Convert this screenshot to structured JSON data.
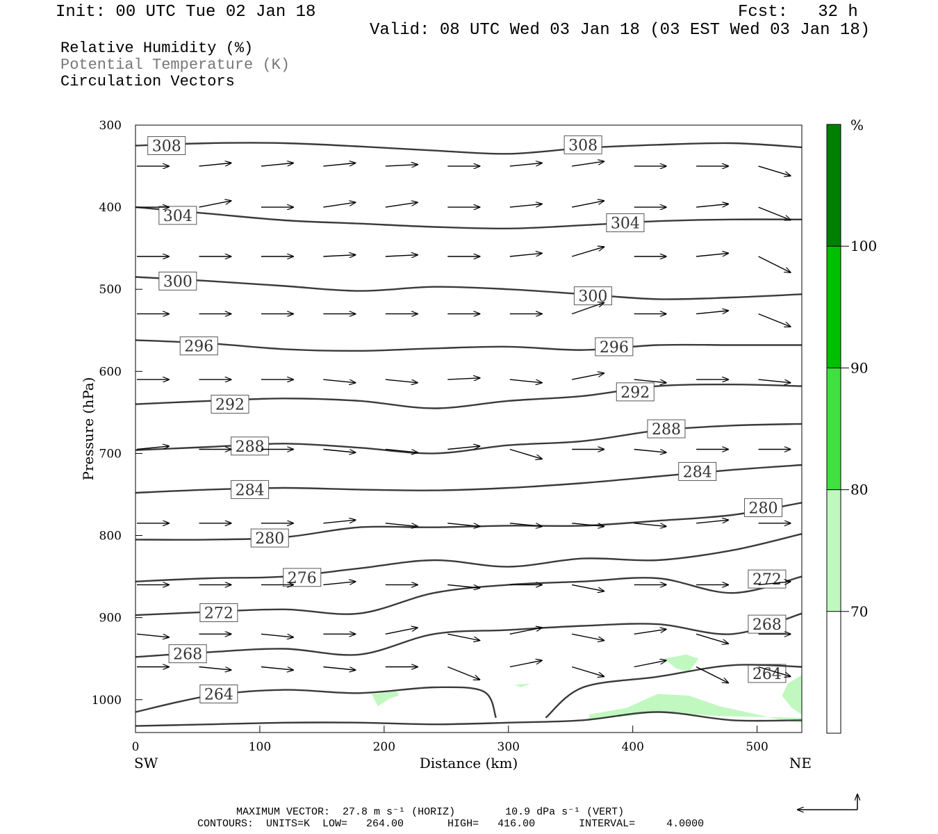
{
  "header": {
    "init": "Init: 00 UTC Tue 02 Jan 18",
    "fcst": "Fcst:   32 h",
    "valid": "Valid: 08 UTC Wed 03 Jan 18 (03 EST Wed 03 Jan 18)"
  },
  "fields": {
    "rh": "Relative Humidity (%)",
    "theta": "Potential Temperature (K)",
    "vectors": "Circulation Vectors"
  },
  "footer": {
    "max_vector": "MAXIMUM VECTOR:  27.8 m s⁻¹ (HORIZ)        10.9 dPa s⁻¹ (VERT)",
    "contours": "CONTOURS:  UNITS=K  LOW=   264.00       HIGH=   416.00       INTERVAL=     4.0000"
  },
  "colors": {
    "rh_70_80": "#c0f8c0",
    "rh_80_90": "#40e040",
    "rh_90_100": "#00c000",
    "rh_100plus": "#008000",
    "contour": "#3a3a3a",
    "arrow": "#000000"
  },
  "chart_data": {
    "type": "cross-section",
    "xlabel": "Distance (km)",
    "ylabel": "Pressure (hPa)",
    "x_left_label": "SW",
    "x_right_label": "NE",
    "xlim": [
      0,
      536
    ],
    "ylim": [
      1040,
      300
    ],
    "x_ticks": [
      0,
      100,
      200,
      300,
      400,
      500
    ],
    "y_ticks": [
      300,
      400,
      500,
      600,
      700,
      800,
      900,
      1000
    ],
    "legend": {
      "unit": "%",
      "levels": [
        70,
        80,
        90,
        100
      ],
      "colors": [
        "#ffffff",
        "#c0f8c0",
        "#40e040",
        "#00c000",
        "#008000"
      ]
    },
    "theta_contours": [
      {
        "value": 308,
        "x": [
          0,
          60,
          120,
          180,
          240,
          300,
          360,
          420,
          480,
          536
        ],
        "p": [
          325,
          322,
          322,
          326,
          331,
          335,
          328,
          324,
          322,
          327
        ],
        "labels": [
          [
            25,
            325
          ],
          [
            360,
            324
          ]
        ]
      },
      {
        "value": 304,
        "x": [
          0,
          60,
          120,
          180,
          240,
          300,
          360,
          420,
          480,
          536
        ],
        "p": [
          400,
          408,
          416,
          420,
          424,
          426,
          422,
          417,
          415,
          415
        ],
        "labels": [
          [
            34,
            410
          ],
          [
            394,
            419
          ]
        ]
      },
      {
        "value": 300,
        "x": [
          0,
          60,
          120,
          180,
          240,
          300,
          360,
          420,
          480,
          536
        ],
        "p": [
          485,
          490,
          496,
          502,
          497,
          500,
          506,
          512,
          510,
          506
        ],
        "labels": [
          [
            34,
            490
          ],
          [
            368,
            508
          ]
        ]
      },
      {
        "value": 296,
        "x": [
          0,
          60,
          120,
          180,
          240,
          300,
          360,
          420,
          480,
          536
        ],
        "p": [
          562,
          566,
          573,
          575,
          572,
          570,
          574,
          568,
          568,
          568
        ],
        "labels": [
          [
            51,
            569
          ],
          [
            385,
            570
          ]
        ]
      },
      {
        "value": 292,
        "x": [
          0,
          60,
          120,
          180,
          240,
          300,
          360,
          420,
          480,
          536
        ],
        "p": [
          640,
          636,
          633,
          636,
          645,
          636,
          630,
          618,
          616,
          618
        ],
        "labels": [
          [
            76,
            640
          ],
          [
            402,
            625
          ]
        ]
      },
      {
        "value": 288,
        "x": [
          0,
          60,
          120,
          180,
          240,
          300,
          360,
          420,
          480,
          536
        ],
        "p": [
          696,
          692,
          688,
          693,
          700,
          690,
          685,
          672,
          666,
          664
        ],
        "labels": [
          [
            92,
            691
          ],
          [
            427,
            670
          ]
        ]
      },
      {
        "value": 284,
        "x": [
          0,
          60,
          120,
          180,
          240,
          300,
          360,
          420,
          480,
          536
        ],
        "p": [
          748,
          744,
          742,
          744,
          745,
          742,
          736,
          728,
          720,
          714
        ],
        "labels": [
          [
            92,
            744
          ],
          [
            452,
            722
          ]
        ]
      },
      {
        "value": 280,
        "x": [
          0,
          60,
          120,
          180,
          240,
          300,
          360,
          420,
          480,
          536
        ],
        "p": [
          805,
          805,
          802,
          790,
          790,
          788,
          788,
          782,
          775,
          760
        ],
        "labels": [
          [
            108,
            803
          ],
          [
            505,
            766
          ]
        ]
      },
      {
        "value": 276,
        "x": [
          0,
          60,
          120,
          180,
          240,
          300,
          360,
          420,
          480,
          536
        ],
        "p": [
          856,
          852,
          850,
          840,
          830,
          838,
          828,
          830,
          818,
          798
        ],
        "labels": [
          [
            134,
            851
          ]
        ]
      },
      {
        "value": 272,
        "x": [
          0,
          60,
          120,
          180,
          240,
          300,
          360,
          420,
          480,
          536
        ],
        "p": [
          897,
          893,
          890,
          895,
          870,
          860,
          856,
          852,
          870,
          850
        ],
        "labels": [
          [
            67,
            894
          ],
          [
            508,
            853
          ]
        ]
      },
      {
        "value": 268,
        "x": [
          0,
          60,
          120,
          180,
          240,
          300,
          360,
          420,
          480,
          536
        ],
        "p": [
          948,
          942,
          938,
          945,
          920,
          915,
          910,
          908,
          920,
          895
        ],
        "labels": [
          [
            42,
            944
          ],
          [
            508,
            908
          ]
        ]
      },
      {
        "value": 264,
        "x": [
          0,
          60,
          120,
          180,
          240,
          280,
          290
        ],
        "p": [
          1015,
          995,
          988,
          992,
          985,
          990,
          1022
        ],
        "labels": [
          [
            67,
            993
          ],
          [
            508,
            968
          ]
        ]
      },
      {
        "value": 264,
        "x": [
          330,
          360,
          420,
          480,
          536
        ],
        "p": [
          1022,
          985,
          972,
          958,
          960
        ],
        "labels": []
      },
      {
        "value": 264,
        "x": [
          0,
          60,
          120,
          180,
          240,
          300,
          360,
          420,
          480,
          536
        ],
        "p": [
          1032,
          1030,
          1028,
          1028,
          1030,
          1028,
          1025,
          1015,
          1025,
          1025
        ],
        "labels": []
      }
    ],
    "rh_shading": [
      {
        "range": "70-80",
        "polygon_km_hpa": [
          [
            425,
            950
          ],
          [
            435,
            962
          ],
          [
            445,
            966
          ],
          [
            453,
            950
          ],
          [
            443,
            945
          ]
        ]
      },
      {
        "range": "70-80",
        "polygon_km_hpa": [
          [
            190,
            993
          ],
          [
            210,
            990
          ],
          [
            212,
            995
          ],
          [
            205,
            998
          ],
          [
            195,
            1008
          ]
        ]
      },
      {
        "range": "70-80",
        "polygon_km_hpa": [
          [
            365,
            1018
          ],
          [
            395,
            1010
          ],
          [
            420,
            993
          ],
          [
            445,
            995
          ],
          [
            470,
            1008
          ],
          [
            500,
            1018
          ],
          [
            520,
            1025
          ],
          [
            536,
            1028
          ],
          [
            536,
            1022
          ],
          [
            470,
            1020
          ],
          [
            420,
            1015
          ],
          [
            395,
            1020
          ],
          [
            365,
            1024
          ]
        ]
      },
      {
        "range": "70-80",
        "polygon_km_hpa": [
          [
            536,
            970
          ],
          [
            525,
            980
          ],
          [
            520,
            995
          ],
          [
            528,
            1010
          ],
          [
            536,
            1018
          ]
        ]
      },
      {
        "range": "70-80",
        "polygon_km_hpa": [
          [
            305,
            982
          ],
          [
            318,
            980
          ],
          [
            310,
            985
          ]
        ]
      }
    ],
    "wind_vectors": {
      "p_levels": [
        350,
        400,
        460,
        530,
        610,
        695,
        785,
        860,
        920,
        960
      ],
      "x_km": [
        0,
        50,
        100,
        150,
        200,
        250,
        300,
        350,
        400,
        450,
        500
      ],
      "u_rel": [
        1,
        1,
        1,
        1,
        1,
        1,
        1,
        1,
        1,
        1,
        1
      ],
      "w_rel_by_level": [
        [
          0,
          -0.1,
          -0.1,
          -0.1,
          -0.05,
          0,
          -0.1,
          -0.15,
          0,
          0,
          0.3
        ],
        [
          0,
          -0.2,
          0,
          -0.15,
          -0.15,
          0,
          -0.1,
          -0.2,
          0,
          -0.1,
          0.4
        ],
        [
          0,
          0,
          0,
          -0.05,
          -0.05,
          0,
          -0.1,
          -0.3,
          0,
          -0.1,
          0.5
        ],
        [
          0,
          0,
          0,
          0,
          0,
          0,
          0,
          -0.35,
          0,
          -0.1,
          0.4
        ],
        [
          0,
          0,
          0,
          0.1,
          0.1,
          -0.05,
          0.1,
          -0.2,
          0.1,
          0,
          0.1
        ],
        [
          -0.1,
          0,
          0,
          0.1,
          0.1,
          -0.1,
          0.3,
          0,
          0.1,
          0,
          0
        ],
        [
          0,
          0,
          0,
          -0.1,
          0.1,
          0.1,
          0.1,
          0.1,
          0.1,
          -0.1,
          0
        ],
        [
          0,
          0,
          0,
          -0.1,
          0,
          0.1,
          0,
          0.2,
          0,
          0,
          -0.1
        ],
        [
          0.1,
          0,
          0.1,
          0,
          -0.2,
          0.2,
          -0.2,
          0.2,
          -0.15,
          0.3,
          0
        ],
        [
          0,
          0.1,
          0.1,
          0.1,
          0,
          0.4,
          -0.2,
          0.3,
          -0.2,
          0.5,
          0.3
        ]
      ]
    }
  }
}
